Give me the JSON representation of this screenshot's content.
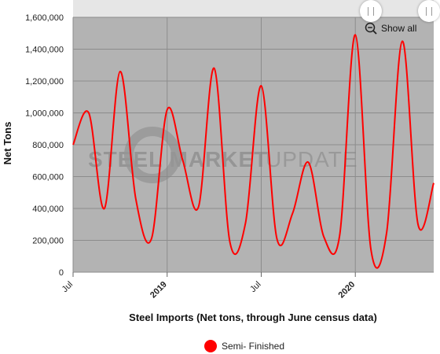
{
  "chart_data": {
    "type": "line",
    "title": "",
    "xlabel": "Steel Imports (Net tons, through June census data)",
    "ylabel": "Net Tons",
    "ylim": [
      0,
      1600000
    ],
    "yticks": [
      0,
      200000,
      400000,
      600000,
      800000,
      1000000,
      1200000,
      1400000,
      1600000
    ],
    "ytick_labels": [
      "0",
      "200,000",
      "400,000",
      "600,000",
      "800,000",
      "1,000,000",
      "1,200,000",
      "1,400,000",
      "1,600,000"
    ],
    "xlim": [
      "2018-07",
      "2020-06"
    ],
    "xticks": [
      {
        "label": "Jul",
        "x": "2018-07",
        "bold": false
      },
      {
        "label": "2019",
        "x": "2019-01",
        "bold": true
      },
      {
        "label": "Jul",
        "x": "2019-07",
        "bold": false
      },
      {
        "label": "2020",
        "x": "2020-01",
        "bold": true
      }
    ],
    "grid": true,
    "legend_position": "bottom",
    "series": [
      {
        "name": "Semi- Finished",
        "color": "#ff0000",
        "x": [
          "2018-07",
          "2018-08",
          "2018-09",
          "2018-10",
          "2018-11",
          "2018-12",
          "2019-01",
          "2019-02",
          "2019-03",
          "2019-04",
          "2019-05",
          "2019-06",
          "2019-07",
          "2019-08",
          "2019-09",
          "2019-10",
          "2019-11",
          "2019-12",
          "2020-01",
          "2020-02",
          "2020-03",
          "2020-04",
          "2020-05",
          "2020-06"
        ],
        "values": [
          800000,
          1000000,
          400000,
          1260000,
          460000,
          210000,
          1020000,
          700000,
          410000,
          1280000,
          190000,
          310000,
          1170000,
          210000,
          370000,
          690000,
          220000,
          230000,
          1490000,
          140000,
          250000,
          1450000,
          300000,
          560000
        ]
      }
    ]
  },
  "controls": {
    "show_all_label": "Show all",
    "zoom_icon": "zoom-out-icon",
    "handle_icon": "drag-handle-icon"
  },
  "watermark": {
    "text_bold": "STEEL MARKET",
    "text_light": "UPDATE"
  },
  "colors": {
    "plot_background": "#b3b3b3",
    "navigator_strip": "#e6e6e6",
    "gridline": "#8c8c8c",
    "series": "#ff0000"
  }
}
